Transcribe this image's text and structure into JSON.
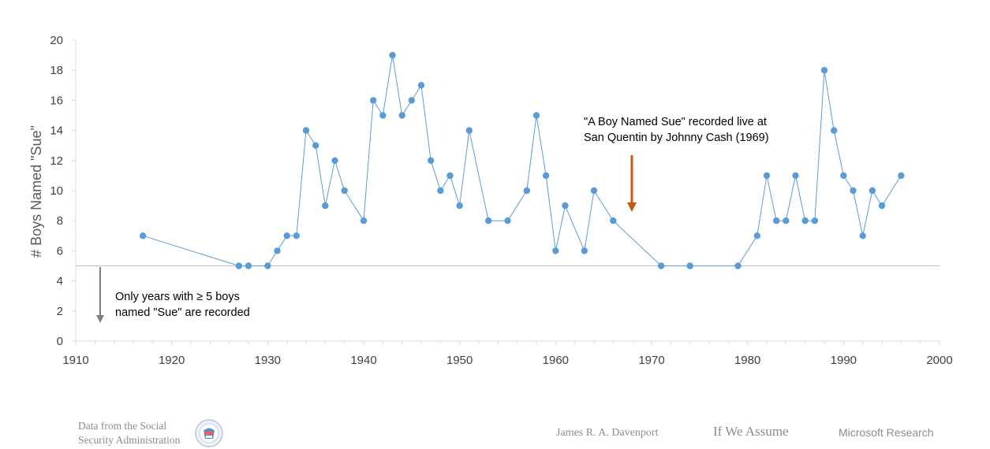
{
  "chart_data": {
    "type": "line",
    "ylabel": "# Boys Named \"Sue\"",
    "xlabel": "",
    "xlim": [
      1910,
      2000
    ],
    "ylim": [
      0,
      20
    ],
    "x_ticks": [
      "1910",
      "1920",
      "1930",
      "1940",
      "1950",
      "1960",
      "1970",
      "1980",
      "1990",
      "2000"
    ],
    "y_ticks": [
      "0",
      "2",
      "4",
      "6",
      "8",
      "10",
      "12",
      "14",
      "16",
      "18",
      "20"
    ],
    "grid": false,
    "reference_line": 5,
    "series": [
      {
        "color": "#5b9bd5",
        "x": [
          1917,
          1927,
          1928,
          1930,
          1931,
          1932,
          1933,
          1934,
          1935,
          1936,
          1937,
          1938,
          1940,
          1941,
          1942,
          1943,
          1944,
          1945,
          1946,
          1947,
          1948,
          1949,
          1950,
          1951,
          1953,
          1955,
          1957,
          1958,
          1959,
          1960,
          1961,
          1963,
          1964,
          1966,
          1971,
          1974,
          1979,
          1981,
          1982,
          1983,
          1984,
          1985,
          1986,
          1987,
          1988,
          1989,
          1990,
          1991,
          1992,
          1993,
          1994,
          1996
        ],
        "y": [
          7,
          5,
          5,
          5,
          6,
          7,
          7,
          14,
          13,
          9,
          12,
          10,
          8,
          16,
          15,
          19,
          15,
          16,
          17,
          12,
          10,
          11,
          9,
          14,
          8,
          8,
          10,
          15,
          11,
          6,
          9,
          6,
          10,
          8,
          5,
          5,
          5,
          7,
          11,
          8,
          8,
          11,
          8,
          8,
          18,
          14,
          11,
          10,
          7,
          10,
          9,
          11
        ]
      }
    ],
    "annotations": {
      "record_line1": "\"A Boy Named Sue\" recorded live at",
      "record_line2": "San Quentin by Johnny Cash (1969)",
      "record_arrow_color": "#c55a11",
      "threshold_line1": "Only years with ≥ 5 boys",
      "threshold_line2": "named \"Sue\" are recorded",
      "threshold_arrow_color": "#7f7f7f"
    }
  },
  "footer": {
    "source_line1": "Data from the Social",
    "source_line2": "Security Administration",
    "seal_icon": "ssa-seal-icon",
    "author": "James R. A. Davenport",
    "blog": "If We Assume",
    "org": "Microsoft Research"
  }
}
